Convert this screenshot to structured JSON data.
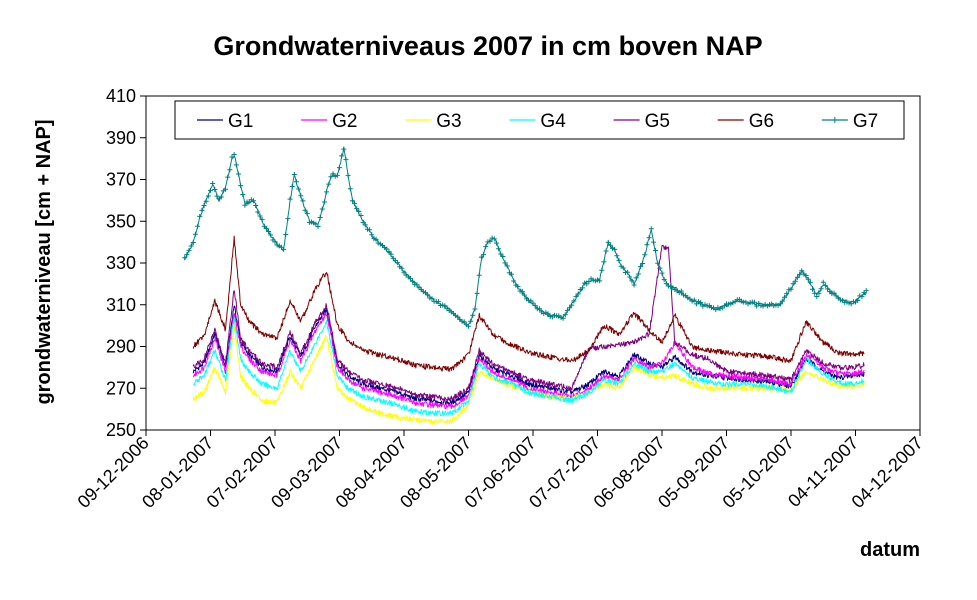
{
  "chart_data": {
    "type": "line",
    "title": "Grondwaterniveaus 2007 in cm boven NAP",
    "xlabel": "datum",
    "ylabel": "grondwaterniveau [cm + NAP]",
    "ylim": [
      250,
      410
    ],
    "yticks": [
      250,
      270,
      290,
      310,
      330,
      350,
      370,
      390,
      410
    ],
    "xlim": [
      "2006-12-09",
      "2007-12-04"
    ],
    "xticks": [
      "09-12-2006",
      "08-01-2007",
      "07-02-2007",
      "09-03-2007",
      "08-04-2007",
      "08-05-2007",
      "07-06-2007",
      "07-07-2007",
      "06-08-2007",
      "05-09-2007",
      "05-10-2007",
      "04-11-2007",
      "04-12-2007"
    ],
    "grid": false,
    "legend": "top",
    "series": [
      {
        "name": "G1",
        "color": "#000080",
        "marker": "none",
        "x": [
          "2006-12-31",
          "2007-01-05",
          "2007-01-10",
          "2007-01-15",
          "2007-01-19",
          "2007-01-22",
          "2007-01-26",
          "2007-02-01",
          "2007-02-08",
          "2007-02-14",
          "2007-02-19",
          "2007-02-26",
          "2007-03-03",
          "2007-03-08",
          "2007-03-13",
          "2007-03-20",
          "2007-03-28",
          "2007-04-05",
          "2007-04-13",
          "2007-04-21",
          "2007-04-30",
          "2007-05-08",
          "2007-05-13",
          "2007-05-20",
          "2007-05-28",
          "2007-06-05",
          "2007-06-15",
          "2007-06-25",
          "2007-07-03",
          "2007-07-10",
          "2007-07-17",
          "2007-07-24",
          "2007-07-31",
          "2007-08-06",
          "2007-08-12",
          "2007-08-20",
          "2007-08-28",
          "2007-09-05",
          "2007-09-15",
          "2007-09-25",
          "2007-10-05",
          "2007-10-12",
          "2007-10-20",
          "2007-10-27",
          "2007-11-03",
          "2007-11-08"
        ],
        "y": [
          278,
          282,
          296,
          280,
          310,
          292,
          286,
          280,
          278,
          295,
          285,
          300,
          308,
          282,
          276,
          272,
          270,
          268,
          265,
          264,
          263,
          268,
          286,
          279,
          276,
          272,
          270,
          268,
          272,
          278,
          276,
          286,
          282,
          280,
          285,
          278,
          276,
          275,
          274,
          273,
          271,
          284,
          278,
          275,
          276,
          277
        ]
      },
      {
        "name": "G2",
        "color": "#ff00ff",
        "marker": "none",
        "x": [
          "2006-12-31",
          "2007-01-05",
          "2007-01-10",
          "2007-01-15",
          "2007-01-19",
          "2007-01-22",
          "2007-01-26",
          "2007-02-01",
          "2007-02-08",
          "2007-02-14",
          "2007-02-19",
          "2007-02-26",
          "2007-03-03",
          "2007-03-08",
          "2007-03-13",
          "2007-03-20",
          "2007-03-28",
          "2007-04-05",
          "2007-04-13",
          "2007-04-21",
          "2007-04-30",
          "2007-05-08",
          "2007-05-13",
          "2007-05-20",
          "2007-05-28",
          "2007-06-05",
          "2007-06-15",
          "2007-06-25",
          "2007-07-03",
          "2007-07-10",
          "2007-07-17",
          "2007-07-24",
          "2007-07-31",
          "2007-08-06",
          "2007-08-12",
          "2007-08-20",
          "2007-08-28",
          "2007-09-05",
          "2007-09-15",
          "2007-09-25",
          "2007-10-05",
          "2007-10-12",
          "2007-10-20",
          "2007-10-27",
          "2007-11-03",
          "2007-11-08"
        ],
        "y": [
          276,
          280,
          294,
          278,
          306,
          290,
          284,
          278,
          276,
          293,
          283,
          298,
          306,
          280,
          274,
          270,
          268,
          266,
          263,
          262,
          261,
          266,
          284,
          277,
          274,
          270,
          268,
          266,
          270,
          276,
          274,
          284,
          280,
          282,
          292,
          280,
          277,
          276,
          275,
          274,
          272,
          286,
          280,
          277,
          277,
          278
        ]
      },
      {
        "name": "G3",
        "color": "#ffff00",
        "marker": "none",
        "x": [
          "2006-12-31",
          "2007-01-05",
          "2007-01-10",
          "2007-01-15",
          "2007-01-19",
          "2007-01-22",
          "2007-01-26",
          "2007-02-01",
          "2007-02-08",
          "2007-02-14",
          "2007-02-19",
          "2007-02-26",
          "2007-03-03",
          "2007-03-08",
          "2007-03-13",
          "2007-03-20",
          "2007-03-28",
          "2007-04-05",
          "2007-04-13",
          "2007-04-21",
          "2007-04-30",
          "2007-05-08",
          "2007-05-13",
          "2007-05-20",
          "2007-05-28",
          "2007-06-05",
          "2007-06-15",
          "2007-06-25",
          "2007-07-03",
          "2007-07-10",
          "2007-07-17",
          "2007-07-24",
          "2007-07-31",
          "2007-08-06",
          "2007-08-12",
          "2007-08-20",
          "2007-08-28",
          "2007-09-05",
          "2007-09-15",
          "2007-09-25",
          "2007-10-05",
          "2007-10-12",
          "2007-10-20",
          "2007-10-27",
          "2007-11-03",
          "2007-11-08"
        ],
        "y": [
          265,
          268,
          280,
          268,
          300,
          276,
          270,
          264,
          263,
          278,
          270,
          285,
          295,
          270,
          265,
          261,
          258,
          256,
          255,
          254,
          254,
          262,
          278,
          274,
          271,
          268,
          266,
          265,
          268,
          272,
          270,
          280,
          276,
          275,
          276,
          272,
          270,
          270,
          270,
          270,
          269,
          278,
          274,
          271,
          271,
          272
        ]
      },
      {
        "name": "G4",
        "color": "#00ffff",
        "marker": "none",
        "x": [
          "2006-12-31",
          "2007-01-05",
          "2007-01-10",
          "2007-01-15",
          "2007-01-19",
          "2007-01-22",
          "2007-01-26",
          "2007-02-01",
          "2007-02-08",
          "2007-02-14",
          "2007-02-19",
          "2007-02-26",
          "2007-03-03",
          "2007-03-08",
          "2007-03-13",
          "2007-03-20",
          "2007-03-28",
          "2007-04-05",
          "2007-04-13",
          "2007-04-21",
          "2007-04-30",
          "2007-05-08",
          "2007-05-13",
          "2007-05-20",
          "2007-05-28",
          "2007-06-05",
          "2007-06-15",
          "2007-06-25",
          "2007-07-03",
          "2007-07-10",
          "2007-07-17",
          "2007-07-24",
          "2007-07-31",
          "2007-08-06",
          "2007-08-12",
          "2007-08-20",
          "2007-08-28",
          "2007-09-05",
          "2007-09-15",
          "2007-09-25",
          "2007-10-05",
          "2007-10-12",
          "2007-10-20",
          "2007-10-27",
          "2007-11-03",
          "2007-11-08"
        ],
        "y": [
          272,
          276,
          288,
          274,
          304,
          284,
          278,
          272,
          270,
          288,
          278,
          292,
          302,
          276,
          270,
          266,
          264,
          262,
          259,
          258,
          258,
          264,
          282,
          275,
          272,
          268,
          266,
          264,
          268,
          274,
          272,
          282,
          278,
          278,
          282,
          275,
          273,
          272,
          272,
          271,
          268,
          284,
          277,
          273,
          272,
          274
        ]
      },
      {
        "name": "G5",
        "color": "#800080",
        "marker": "none",
        "x": [
          "2006-12-31",
          "2007-01-05",
          "2007-01-10",
          "2007-01-15",
          "2007-01-19",
          "2007-01-22",
          "2007-01-26",
          "2007-02-01",
          "2007-02-08",
          "2007-02-14",
          "2007-02-19",
          "2007-02-26",
          "2007-03-03",
          "2007-03-08",
          "2007-03-13",
          "2007-03-20",
          "2007-03-28",
          "2007-04-05",
          "2007-04-13",
          "2007-04-21",
          "2007-04-30",
          "2007-05-08",
          "2007-05-13",
          "2007-05-20",
          "2007-05-28",
          "2007-06-05",
          "2007-06-15",
          "2007-06-25",
          "2007-07-03",
          "2007-07-10",
          "2007-07-17",
          "2007-07-24",
          "2007-07-31",
          "2007-08-06",
          "2007-08-09",
          "2007-08-12",
          "2007-08-20",
          "2007-08-28",
          "2007-09-05",
          "2007-09-15",
          "2007-09-25",
          "2007-10-05",
          "2007-10-12",
          "2007-10-20",
          "2007-10-27",
          "2007-11-03",
          "2007-11-08"
        ],
        "y": [
          280,
          284,
          298,
          282,
          318,
          294,
          288,
          282,
          280,
          297,
          287,
          302,
          310,
          284,
          278,
          274,
          272,
          270,
          267,
          266,
          265,
          270,
          288,
          281,
          278,
          274,
          272,
          270,
          289,
          290,
          291,
          292,
          296,
          338,
          337,
          292,
          286,
          284,
          278,
          277,
          276,
          274,
          288,
          282,
          280,
          280,
          281
        ]
      },
      {
        "name": "G6",
        "color": "#800000",
        "marker": "none",
        "x": [
          "2006-12-31",
          "2007-01-05",
          "2007-01-10",
          "2007-01-15",
          "2007-01-19",
          "2007-01-22",
          "2007-01-26",
          "2007-02-01",
          "2007-02-08",
          "2007-02-14",
          "2007-02-19",
          "2007-02-26",
          "2007-03-03",
          "2007-03-08",
          "2007-03-13",
          "2007-03-20",
          "2007-03-28",
          "2007-04-05",
          "2007-04-13",
          "2007-04-21",
          "2007-04-30",
          "2007-05-08",
          "2007-05-13",
          "2007-05-20",
          "2007-05-28",
          "2007-06-05",
          "2007-06-15",
          "2007-06-25",
          "2007-07-03",
          "2007-07-10",
          "2007-07-17",
          "2007-07-24",
          "2007-07-31",
          "2007-08-06",
          "2007-08-12",
          "2007-08-20",
          "2007-08-28",
          "2007-09-05",
          "2007-09-15",
          "2007-09-25",
          "2007-10-05",
          "2007-10-12",
          "2007-10-20",
          "2007-10-27",
          "2007-11-03",
          "2007-11-08"
        ],
        "y": [
          290,
          295,
          312,
          298,
          342,
          310,
          302,
          296,
          294,
          312,
          302,
          318,
          326,
          300,
          293,
          288,
          286,
          284,
          281,
          280,
          279,
          286,
          305,
          295,
          291,
          287,
          285,
          283,
          288,
          300,
          296,
          306,
          298,
          292,
          305,
          290,
          288,
          287,
          286,
          285,
          283,
          302,
          292,
          287,
          286,
          287
        ]
      },
      {
        "name": "G7",
        "color": "#008080",
        "marker": "plus",
        "x": [
          "2006-12-27",
          "2006-12-31",
          "2007-01-03",
          "2007-01-06",
          "2007-01-09",
          "2007-01-12",
          "2007-01-15",
          "2007-01-18",
          "2007-01-19",
          "2007-01-21",
          "2007-01-24",
          "2007-01-28",
          "2007-02-02",
          "2007-02-07",
          "2007-02-11",
          "2007-02-14",
          "2007-02-16",
          "2007-02-19",
          "2007-02-23",
          "2007-02-27",
          "2007-03-02",
          "2007-03-05",
          "2007-03-08",
          "2007-03-11",
          "2007-03-15",
          "2007-03-20",
          "2007-03-25",
          "2007-04-01",
          "2007-04-08",
          "2007-04-15",
          "2007-04-22",
          "2007-04-29",
          "2007-05-04",
          "2007-05-08",
          "2007-05-11",
          "2007-05-14",
          "2007-05-17",
          "2007-05-20",
          "2007-05-25",
          "2007-05-31",
          "2007-06-07",
          "2007-06-14",
          "2007-06-21",
          "2007-06-25",
          "2007-07-01",
          "2007-07-04",
          "2007-07-08",
          "2007-07-12",
          "2007-07-15",
          "2007-07-18",
          "2007-07-21",
          "2007-07-24",
          "2007-07-28",
          "2007-08-01",
          "2007-08-04",
          "2007-08-08",
          "2007-08-12",
          "2007-08-16",
          "2007-08-20",
          "2007-08-25",
          "2007-09-01",
          "2007-09-10",
          "2007-09-20",
          "2007-09-30",
          "2007-10-05",
          "2007-10-10",
          "2007-10-13",
          "2007-10-17",
          "2007-10-20",
          "2007-10-24",
          "2007-10-29",
          "2007-11-03",
          "2007-11-09"
        ],
        "y": [
          332,
          340,
          352,
          360,
          368,
          360,
          366,
          380,
          382,
          372,
          358,
          360,
          348,
          340,
          336,
          360,
          372,
          362,
          350,
          348,
          360,
          372,
          372,
          385,
          360,
          350,
          342,
          335,
          326,
          318,
          312,
          308,
          303,
          300,
          308,
          332,
          340,
          342,
          330,
          318,
          310,
          305,
          304,
          310,
          320,
          322,
          322,
          340,
          336,
          328,
          325,
          320,
          330,
          346,
          330,
          320,
          318,
          315,
          312,
          310,
          308,
          312,
          310,
          310,
          318,
          326,
          322,
          314,
          320,
          316,
          312,
          311,
          316
        ]
      }
    ]
  }
}
